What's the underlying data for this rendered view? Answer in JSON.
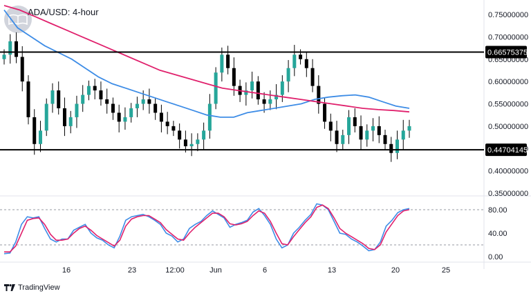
{
  "header": {
    "symbol_title": "ADA/USD: 4-hour"
  },
  "footer": {
    "brand": "TradingView"
  },
  "colors": {
    "price_up": "#26a69a",
    "price_candle": "#000000",
    "ma_fast": "#3d8ce6",
    "ma_slow": "#e0206c",
    "level_line": "#000000",
    "stoch_k": "#3d8ce6",
    "stoch_d": "#e0206c",
    "dotted": "#9598a1"
  },
  "chart_data": [
    {
      "type": "candlestick",
      "title": "ADA/USD: 4-hour",
      "ylim": [
        0.33,
        0.77
      ],
      "y_ticks": [
        "0.75000000",
        "0.70000000",
        "0.65000000",
        "0.60000000",
        "0.55000000",
        "0.50000000",
        "0.45000000",
        "0.40000000",
        "0.35000000"
      ],
      "x_ticks": [
        "16",
        "23",
        "12:00",
        "Jun",
        "6",
        "13",
        "20",
        "25"
      ],
      "horizontal_levels": [
        {
          "value": 0.66575375,
          "label": "0.66575375"
        },
        {
          "value": 0.44704145,
          "label": "0.44704145"
        }
      ],
      "close_path": [
        0.66,
        0.69,
        0.655,
        0.6,
        0.52,
        0.46,
        0.49,
        0.55,
        0.58,
        0.54,
        0.5,
        0.52,
        0.55,
        0.57,
        0.59,
        0.58,
        0.56,
        0.55,
        0.53,
        0.51,
        0.52,
        0.54,
        0.55,
        0.56,
        0.55,
        0.53,
        0.51,
        0.5,
        0.49,
        0.47,
        0.455,
        0.46,
        0.47,
        0.49,
        0.55,
        0.62,
        0.66,
        0.63,
        0.59,
        0.57,
        0.58,
        0.6,
        0.56,
        0.55,
        0.56,
        0.57,
        0.6,
        0.63,
        0.66,
        0.65,
        0.63,
        0.59,
        0.55,
        0.51,
        0.49,
        0.46,
        0.48,
        0.52,
        0.5,
        0.47,
        0.49,
        0.5,
        0.48,
        0.46,
        0.44,
        0.47,
        0.49,
        0.5
      ],
      "moving_averages": [
        {
          "color": "blue",
          "values": [
            0.76,
            0.72,
            0.7,
            0.68,
            0.665,
            0.65,
            0.63,
            0.61,
            0.595,
            0.585,
            0.575,
            0.565,
            0.555,
            0.545,
            0.535,
            0.525,
            0.52,
            0.52,
            0.53,
            0.535,
            0.54,
            0.545,
            0.55,
            0.56,
            0.565,
            0.568,
            0.57,
            0.565,
            0.555,
            0.545,
            0.54
          ]
        },
        {
          "color": "magenta",
          "values": [
            0.77,
            0.76,
            0.745,
            0.73,
            0.715,
            0.7,
            0.685,
            0.67,
            0.655,
            0.64,
            0.625,
            0.615,
            0.605,
            0.595,
            0.585,
            0.58,
            0.575,
            0.57,
            0.565,
            0.56,
            0.555,
            0.55,
            0.545,
            0.54,
            0.537,
            0.535,
            0.532
          ]
        }
      ]
    },
    {
      "type": "line",
      "indicator": "stochastic",
      "ylim": [
        0,
        100
      ],
      "y_ticks": [
        "80.00",
        "40.00",
        "0.00"
      ],
      "reference_levels": [
        80,
        20
      ],
      "series": [
        {
          "values": [
            5,
            6,
            25,
            55,
            68,
            66,
            68,
            48,
            30,
            25,
            30,
            30,
            45,
            50,
            55,
            40,
            32,
            28,
            20,
            15,
            35,
            62,
            68,
            70,
            72,
            68,
            62,
            55,
            40,
            35,
            25,
            30,
            48,
            55,
            60,
            70,
            78,
            72,
            66,
            50,
            55,
            58,
            62,
            76,
            82,
            70,
            55,
            30,
            15,
            20,
            40,
            50,
            62,
            72,
            90,
            88,
            80,
            60,
            40,
            38,
            30,
            25,
            18,
            10,
            12,
            25,
            52,
            62,
            75,
            80,
            82
          ]
        },
        {
          "values": [
            8,
            8,
            18,
            40,
            62,
            65,
            66,
            55,
            38,
            28,
            28,
            30,
            40,
            48,
            52,
            45,
            36,
            30,
            24,
            18,
            28,
            52,
            64,
            68,
            70,
            70,
            64,
            58,
            46,
            38,
            30,
            28,
            40,
            50,
            58,
            66,
            74,
            74,
            68,
            56,
            54,
            56,
            60,
            70,
            78,
            74,
            60,
            40,
            22,
            20,
            34,
            46,
            58,
            68,
            84,
            88,
            82,
            66,
            48,
            40,
            34,
            28,
            22,
            14,
            12,
            20,
            42,
            56,
            70,
            78,
            80
          ]
        }
      ]
    }
  ]
}
